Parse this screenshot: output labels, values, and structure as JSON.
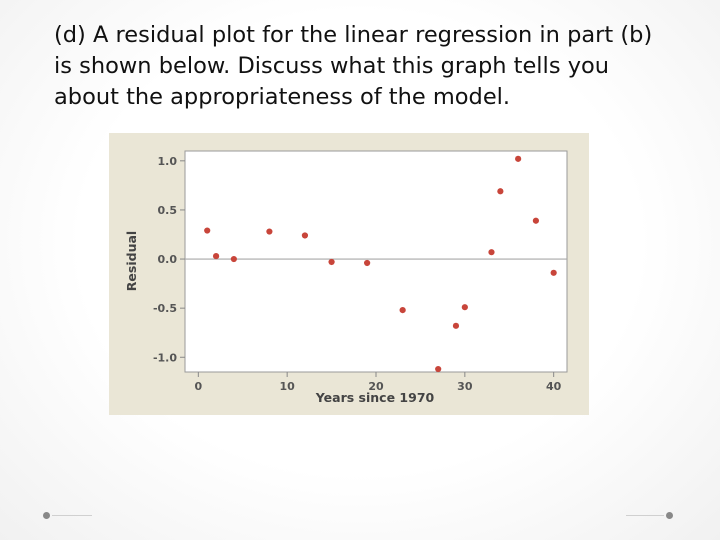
{
  "prompt": {
    "text": "(d) A residual plot for the linear regression in part (b) is shown below. Discuss what this graph tells you about the appropriateness of the model."
  },
  "chart_data": {
    "type": "scatter",
    "title": "",
    "xlabel": "Years since 1970",
    "ylabel": "Residual",
    "xlim": [
      -1.5,
      41.5
    ],
    "ylim": [
      -1.15,
      1.1
    ],
    "x_ticks": [
      0,
      10,
      20,
      30,
      40
    ],
    "y_ticks": [
      1.0,
      0.5,
      0.0,
      -0.5,
      -1.0
    ],
    "x_tick_labels": [
      "0",
      "10",
      "20",
      "30",
      "40"
    ],
    "y_tick_labels": [
      "1.0",
      "0.5",
      "0.0",
      "-0.5",
      "-1.0"
    ],
    "reference_line_y": 0,
    "grid": false,
    "points": [
      {
        "x": 1,
        "y": 0.29
      },
      {
        "x": 2,
        "y": 0.03
      },
      {
        "x": 4,
        "y": 0.0
      },
      {
        "x": 8,
        "y": 0.28
      },
      {
        "x": 12,
        "y": 0.24
      },
      {
        "x": 15,
        "y": -0.03
      },
      {
        "x": 19,
        "y": -0.04
      },
      {
        "x": 23,
        "y": -0.52
      },
      {
        "x": 27,
        "y": -1.12
      },
      {
        "x": 29,
        "y": -0.68
      },
      {
        "x": 30,
        "y": -0.49
      },
      {
        "x": 33,
        "y": 0.07
      },
      {
        "x": 34,
        "y": 0.69
      },
      {
        "x": 36,
        "y": 1.02
      },
      {
        "x": 38,
        "y": 0.39
      },
      {
        "x": 40,
        "y": -0.14
      }
    ]
  },
  "colors": {
    "point": "#c8453a",
    "plot_background": "#ffffff",
    "figure_background": "#eae6d6",
    "reference_line": "#a8a8a8",
    "axis": "#888888"
  }
}
